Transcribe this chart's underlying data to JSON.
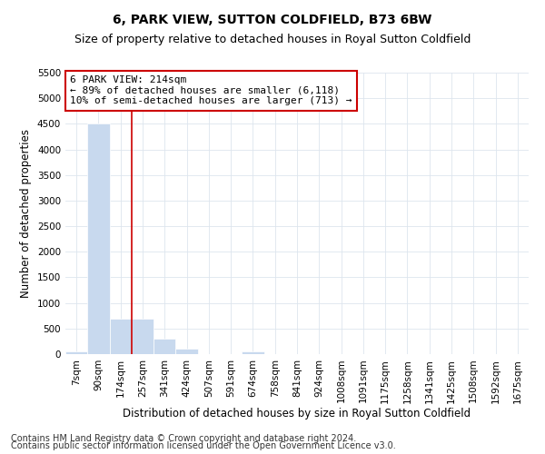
{
  "title": "6, PARK VIEW, SUTTON COLDFIELD, B73 6BW",
  "subtitle": "Size of property relative to detached houses in Royal Sutton Coldfield",
  "xlabel": "Distribution of detached houses by size in Royal Sutton Coldfield",
  "ylabel": "Number of detached properties",
  "footnote1": "Contains HM Land Registry data © Crown copyright and database right 2024.",
  "footnote2": "Contains public sector information licensed under the Open Government Licence v3.0.",
  "annotation_title": "6 PARK VIEW: 214sqm",
  "annotation_line1": "← 89% of detached houses are smaller (6,118)",
  "annotation_line2": "10% of semi-detached houses are larger (713) →",
  "ylim": [
    0,
    5500
  ],
  "yticks": [
    0,
    500,
    1000,
    1500,
    2000,
    2500,
    3000,
    3500,
    4000,
    4500,
    5000,
    5500
  ],
  "categories": [
    "7sqm",
    "90sqm",
    "174sqm",
    "257sqm",
    "341sqm",
    "424sqm",
    "507sqm",
    "591sqm",
    "674sqm",
    "758sqm",
    "841sqm",
    "924sqm",
    "1008sqm",
    "1091sqm",
    "1175sqm",
    "1258sqm",
    "1341sqm",
    "1425sqm",
    "1508sqm",
    "1592sqm",
    "1675sqm"
  ],
  "values": [
    50,
    4500,
    700,
    700,
    300,
    100,
    0,
    0,
    50,
    0,
    0,
    0,
    0,
    0,
    0,
    0,
    0,
    0,
    0,
    0,
    0
  ],
  "bar_color": "#c8d9ee",
  "vline_color": "#cc0000",
  "vline_x_index": 2,
  "annotation_box_color": "#cc0000",
  "annotation_box_fill": "#ffffff",
  "bg_color": "#ffffff",
  "grid_color": "#dde5ee",
  "title_fontsize": 10,
  "subtitle_fontsize": 9,
  "axis_label_fontsize": 8.5,
  "tick_fontsize": 7.5,
  "annotation_fontsize": 8,
  "footnote_fontsize": 7
}
